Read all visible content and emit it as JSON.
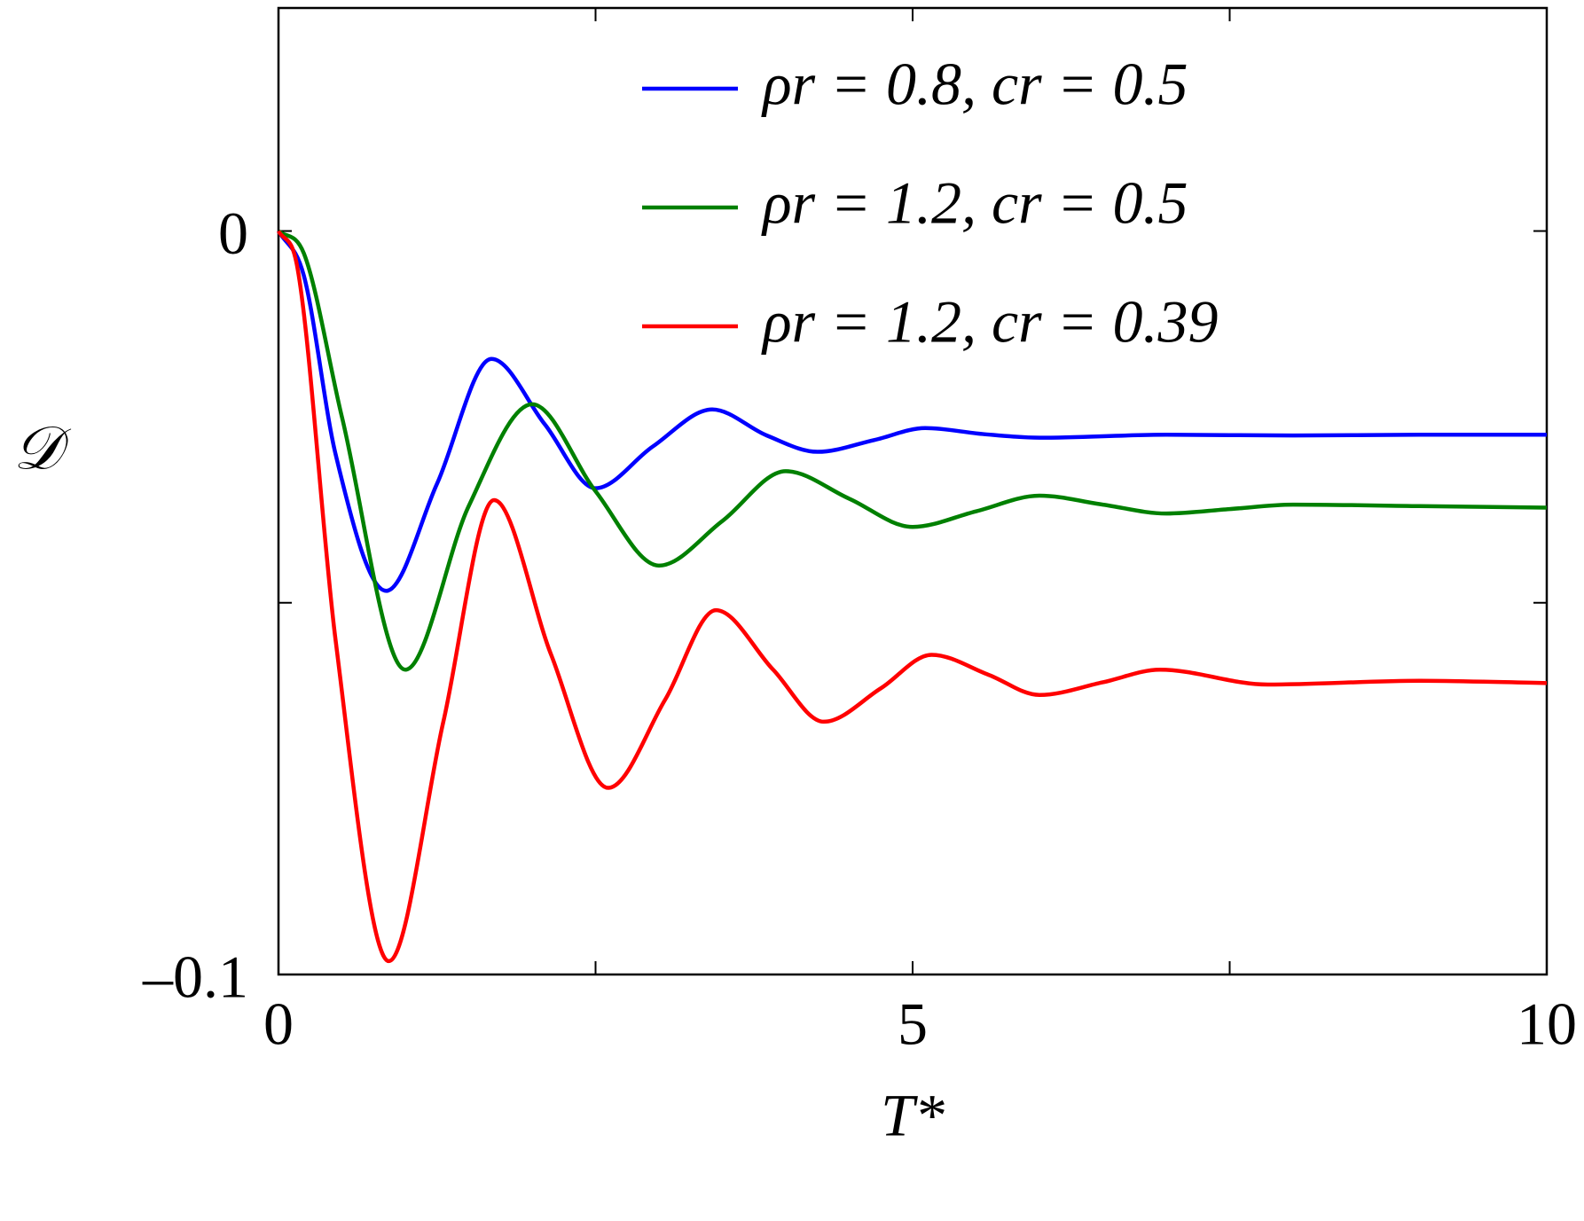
{
  "chart_data": {
    "type": "line",
    "x_label": "T*",
    "y_label": "𝒟",
    "xlim": [
      0,
      10
    ],
    "ylim": [
      -0.1,
      0.03
    ],
    "xticks": [
      0,
      5,
      10
    ],
    "xminor_ticks": [
      2.5,
      7.5
    ],
    "yticks": [
      {
        "value": -0.1,
        "label": "–0.1"
      },
      0
    ],
    "yminor_ticks": [
      -0.05
    ],
    "grid": false,
    "legend_position": "upper-right",
    "series": [
      {
        "name": "ρr = 0.8, cr = 0.5",
        "color": "#0000ff",
        "x": [
          0,
          0.2,
          0.45,
          0.85,
          1.25,
          1.68,
          2.1,
          2.5,
          2.95,
          3.42,
          3.85,
          4.25,
          4.7,
          5.1,
          5.55,
          6.0,
          7,
          8,
          9,
          10
        ],
        "values": [
          0,
          -0.006,
          -0.03,
          -0.0484,
          -0.034,
          -0.0172,
          -0.026,
          -0.0346,
          -0.029,
          -0.024,
          -0.0275,
          -0.0297,
          -0.0281,
          -0.0265,
          -0.0273,
          -0.0278,
          -0.0274,
          -0.0275,
          -0.0274,
          -0.0274
        ]
      },
      {
        "name": "ρr = 1.2, cr = 0.5",
        "color": "#008000",
        "x": [
          0,
          0.2,
          0.5,
          1.0,
          1.5,
          2.0,
          2.5,
          3.0,
          3.5,
          4.0,
          4.5,
          5.0,
          5.5,
          6.0,
          6.5,
          7.0,
          7.5,
          8.0,
          9,
          10
        ],
        "values": [
          0,
          -0.003,
          -0.025,
          -0.059,
          -0.037,
          -0.0233,
          -0.035,
          -0.045,
          -0.039,
          -0.0323,
          -0.036,
          -0.0398,
          -0.0377,
          -0.0356,
          -0.0368,
          -0.038,
          -0.0374,
          -0.0368,
          -0.037,
          -0.0372
        ]
      },
      {
        "name": "ρr = 1.2, cr = 0.39",
        "color": "#ff0000",
        "x": [
          0,
          0.15,
          0.45,
          0.87,
          1.3,
          1.7,
          2.15,
          2.6,
          3.05,
          3.45,
          3.9,
          4.3,
          4.75,
          5.15,
          5.6,
          6.0,
          6.5,
          6.95,
          7.8,
          9,
          10
        ],
        "values": [
          0,
          -0.005,
          -0.055,
          -0.0982,
          -0.066,
          -0.0362,
          -0.057,
          -0.0749,
          -0.063,
          -0.051,
          -0.059,
          -0.066,
          -0.0615,
          -0.057,
          -0.0597,
          -0.0624,
          -0.0607,
          -0.059,
          -0.061,
          -0.0605,
          -0.0608
        ]
      }
    ]
  }
}
